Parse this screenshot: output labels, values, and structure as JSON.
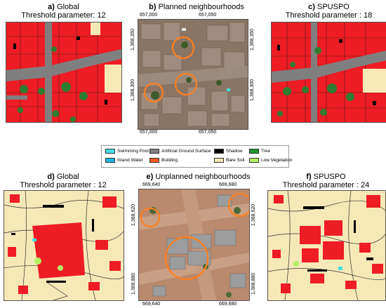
{
  "panels": {
    "a": {
      "letter": "a)",
      "title": "Global",
      "subtitle": "Threshold parameter: 12"
    },
    "b": {
      "letter": "b)",
      "title": "Planned neighbourhoods",
      "top_ticks": [
        "657,000",
        "657,050"
      ],
      "bottom_ticks": [
        "657,000",
        "657,050"
      ],
      "left_ticks": [
        "1,368,350",
        "1,368,300"
      ],
      "right_ticks": [
        "1,368,350",
        "1,368,300"
      ]
    },
    "c": {
      "letter": "c)",
      "title": "SPUSPO",
      "subtitle": "Threshold parameter : 18"
    },
    "d": {
      "letter": "d)",
      "title": "Global",
      "subtitle": "Threshold parameter : 12"
    },
    "e": {
      "letter": "e)",
      "title": "Unplanned neighbourhoods",
      "top_ticks": [
        "669,640",
        "669,680"
      ],
      "bottom_ticks": [
        "669,640",
        "669,680"
      ],
      "left_ticks": [
        "1,368,920",
        "1,368,880"
      ],
      "right_ticks": [
        "1,368,920",
        "1,368,880"
      ]
    },
    "f": {
      "letter": "f)",
      "title": "SPUSPO",
      "subtitle": "Threshold parameter : 24"
    }
  },
  "legend": [
    {
      "label": "Swimming Pool",
      "color": "#40e0e0"
    },
    {
      "label": "Inland Water",
      "color": "#1fb4e6"
    },
    {
      "label": "Artificial Ground Surface",
      "color": "#808080"
    },
    {
      "label": "Building",
      "color": "#ff5a1e"
    },
    {
      "label": "Shadow",
      "color": "#000000"
    },
    {
      "label": "Bare Soil",
      "color": "#f7e6b4"
    },
    {
      "label": "Tree",
      "color": "#1e9628"
    },
    {
      "label": "Low Vegetation",
      "color": "#b4f064"
    }
  ],
  "colors": {
    "building": "#ee1c25",
    "road": "#7f7f7f",
    "tree": "#2e7d32",
    "bare": "#f7e8b8",
    "shadow": "#000000",
    "circle": "#ff7f1e"
  }
}
